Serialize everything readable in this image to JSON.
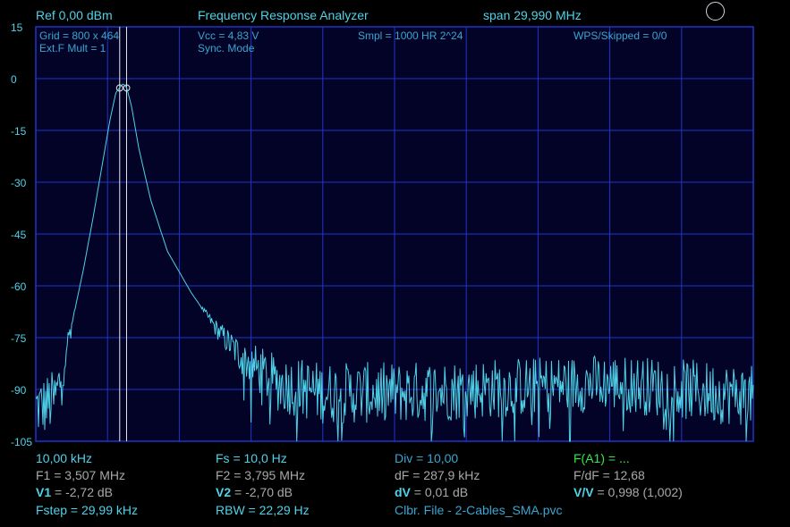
{
  "header": {
    "ref": "Ref  0,00 dBm",
    "title": "Frequency Response Analyzer",
    "span": "span 29,990 MHz"
  },
  "info": {
    "grid": "Grid = 800 x 464",
    "vcc": "Vcc = 4,83 V",
    "smpl": "Smpl = 1000 HR 2^24",
    "wps": "WPS/Skipped  = 0/0",
    "extf": "Ext.F Mult = 1",
    "sync": "Sync. Mode"
  },
  "stats": {
    "col1": [
      {
        "label": "",
        "value": "10,00 kHz"
      },
      {
        "label": "",
        "value": "F1 = 3,507 MHz"
      },
      {
        "label": "V1",
        "value": " = -2,72 dB"
      },
      {
        "label": "",
        "value": "Fstep = 29,99 kHz"
      }
    ],
    "col2": [
      {
        "label": "",
        "value": "Fs = 10,0 Hz"
      },
      {
        "label": "",
        "value": "F2 = 3,795 MHz"
      },
      {
        "label": "V2",
        "value": " = -2,70 dB"
      },
      {
        "label": "",
        "value": "RBW = 22,29 Hz"
      }
    ],
    "col3": [
      {
        "label": "",
        "value": "Div = 10,00"
      },
      {
        "label": "",
        "value": "dF = 287,9 kHz"
      },
      {
        "label": "dV",
        "value": " = 0,01 dB"
      },
      {
        "label": "",
        "value": "Clbr. File - 2-Cables_SMA.pvc"
      }
    ],
    "col4": [
      {
        "label": "",
        "value": "F(A1) = ..."
      },
      {
        "label": "",
        "value": "F/dF = 12,68"
      },
      {
        "label": "V/V",
        "value": " = 0,998 (1,002)"
      }
    ]
  },
  "chart_data": {
    "type": "line",
    "title": "Frequency Response Analyzer",
    "y_tick_labels": [
      "15",
      "0",
      "-15",
      "-30",
      "-45",
      "-60",
      "-75",
      "-90",
      "-105"
    ],
    "ylim": [
      -105,
      15
    ],
    "xlim_mhz": [
      0,
      29.99
    ],
    "grid": true,
    "grid_divisions": {
      "x": 10,
      "y": 8
    },
    "markers_mhz": [
      3.507,
      3.795
    ],
    "marker_values_db": [
      -2.72,
      -2.7
    ],
    "colors": {
      "trace": "#4fd2e8",
      "grid": "#1f36c8",
      "background": "#020326",
      "marker": "#e6e6e6"
    },
    "series": [
      {
        "x_mhz": [
          0.3,
          0.8,
          1.0,
          1.3,
          1.6,
          2.0,
          2.4,
          2.8,
          3.1,
          3.35,
          3.5,
          3.65,
          3.8,
          4.0,
          4.3,
          4.8,
          5.5,
          6.5,
          7.5,
          8.5,
          10.0,
          12.0,
          15.0,
          18.0,
          21.0,
          24.0,
          27.0,
          29.99
        ],
        "y_db": [
          -95,
          -93,
          -88,
          -78,
          -68,
          -55,
          -40,
          -24,
          -12,
          -4,
          -2.7,
          -1.5,
          -2.7,
          -8,
          -20,
          -35,
          -50,
          -62,
          -72,
          -80,
          -88,
          -91,
          -91,
          -90,
          -89,
          -88,
          -90,
          -92
        ]
      }
    ]
  }
}
